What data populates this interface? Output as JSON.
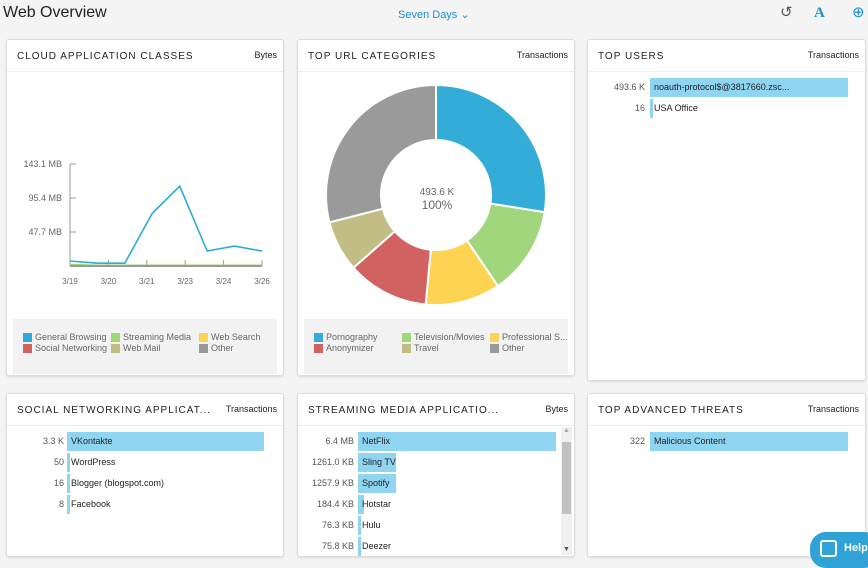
{
  "header": {
    "title": "Web Overview",
    "range": "Seven Days",
    "icons": [
      "undo-icon",
      "font-size-icon",
      "add-icon"
    ]
  },
  "cloud": {
    "title": "CLOUD APPLICATION CLASSES",
    "metric": "Bytes",
    "chart_data": {
      "type": "line",
      "yticks": [
        "143.1 MB",
        "95.4 MB",
        "47.7 MB"
      ],
      "ylim": [
        0,
        143.1
      ],
      "xticks": [
        "3/19",
        "3/20",
        "3/21",
        "3/23",
        "3/24",
        "3/26"
      ],
      "series": [
        {
          "name": "General Browsing",
          "color": "#2eaad8",
          "values": [
            7,
            4,
            4,
            74,
            112,
            21,
            28,
            21
          ]
        },
        {
          "name": "Streaming Media",
          "color": "#9fd67a",
          "values": [
            2,
            1,
            1,
            1,
            1,
            1,
            1,
            1
          ]
        },
        {
          "name": "Other",
          "color": "#999999",
          "values": [
            0,
            0,
            0,
            0,
            0,
            0,
            0,
            0
          ]
        }
      ]
    },
    "legend": [
      {
        "label": "General Browsing",
        "color": "#2eaad8"
      },
      {
        "label": "Streaming Media",
        "color": "#9fd67a"
      },
      {
        "label": "Web Search",
        "color": "#fdd250"
      },
      {
        "label": "Social Networking",
        "color": "#d26262"
      },
      {
        "label": "Web Mail",
        "color": "#c1bd82"
      },
      {
        "label": "Other",
        "color": "#999999"
      }
    ]
  },
  "url": {
    "title": "TOP URL CATEGORIES",
    "metric": "Transactions",
    "center_value": "493.6 K",
    "center_pct": "100%",
    "chart_data": {
      "type": "pie",
      "slices": [
        {
          "label": "Pornography",
          "value": 27.5,
          "color": "#34acd8"
        },
        {
          "label": "Television/Movies",
          "value": 13,
          "color": "#a1d67c"
        },
        {
          "label": "Professional S...",
          "value": 11,
          "color": "#fdd352"
        },
        {
          "label": "Anonymizer",
          "value": 12,
          "color": "#d26161"
        },
        {
          "label": "Travel",
          "value": 7.5,
          "color": "#c2bd84"
        },
        {
          "label": "Other",
          "value": 29,
          "color": "#9a9a9a"
        }
      ]
    }
  },
  "users": {
    "title": "TOP USERS",
    "metric": "Transactions",
    "rows": [
      {
        "value": "493.6 K",
        "label": "noauth-protocol$@3817660.zsc...",
        "frac": 1
      },
      {
        "value": "16",
        "label": "USA Office",
        "frac": 0
      }
    ]
  },
  "social": {
    "title": "SOCIAL NETWORKING APPLICAT...",
    "metric": "Transactions",
    "rows": [
      {
        "value": "3.3 K",
        "label": "VKontakte",
        "frac": 1
      },
      {
        "value": "50",
        "label": "WordPress",
        "frac": 0.015
      },
      {
        "value": "16",
        "label": "Blogger (blogspot.com)",
        "frac": 0.01
      },
      {
        "value": "8",
        "label": "Facebook",
        "frac": 0
      }
    ]
  },
  "streaming": {
    "title": "STREAMING MEDIA APPLICATIO...",
    "metric": "Bytes",
    "rows": [
      {
        "value": "6.4 MB",
        "label": "NetFlix",
        "frac": 1
      },
      {
        "value": "1261.0 KB",
        "label": "Sling TV",
        "frac": 0.19
      },
      {
        "value": "1257.9 KB",
        "label": "Spotify",
        "frac": 0.19
      },
      {
        "value": "184.4 KB",
        "label": "Hotstar",
        "frac": 0.03
      },
      {
        "value": "76.3 KB",
        "label": "Hulu",
        "frac": 0.01
      },
      {
        "value": "75.8 KB",
        "label": "Deezer",
        "frac": 0.01
      }
    ]
  },
  "threats": {
    "title": "TOP ADVANCED THREATS",
    "metric": "Transactions",
    "rows": [
      {
        "value": "322",
        "label": "Malicious Content",
        "frac": 1
      }
    ]
  },
  "help": {
    "label": "Help"
  }
}
